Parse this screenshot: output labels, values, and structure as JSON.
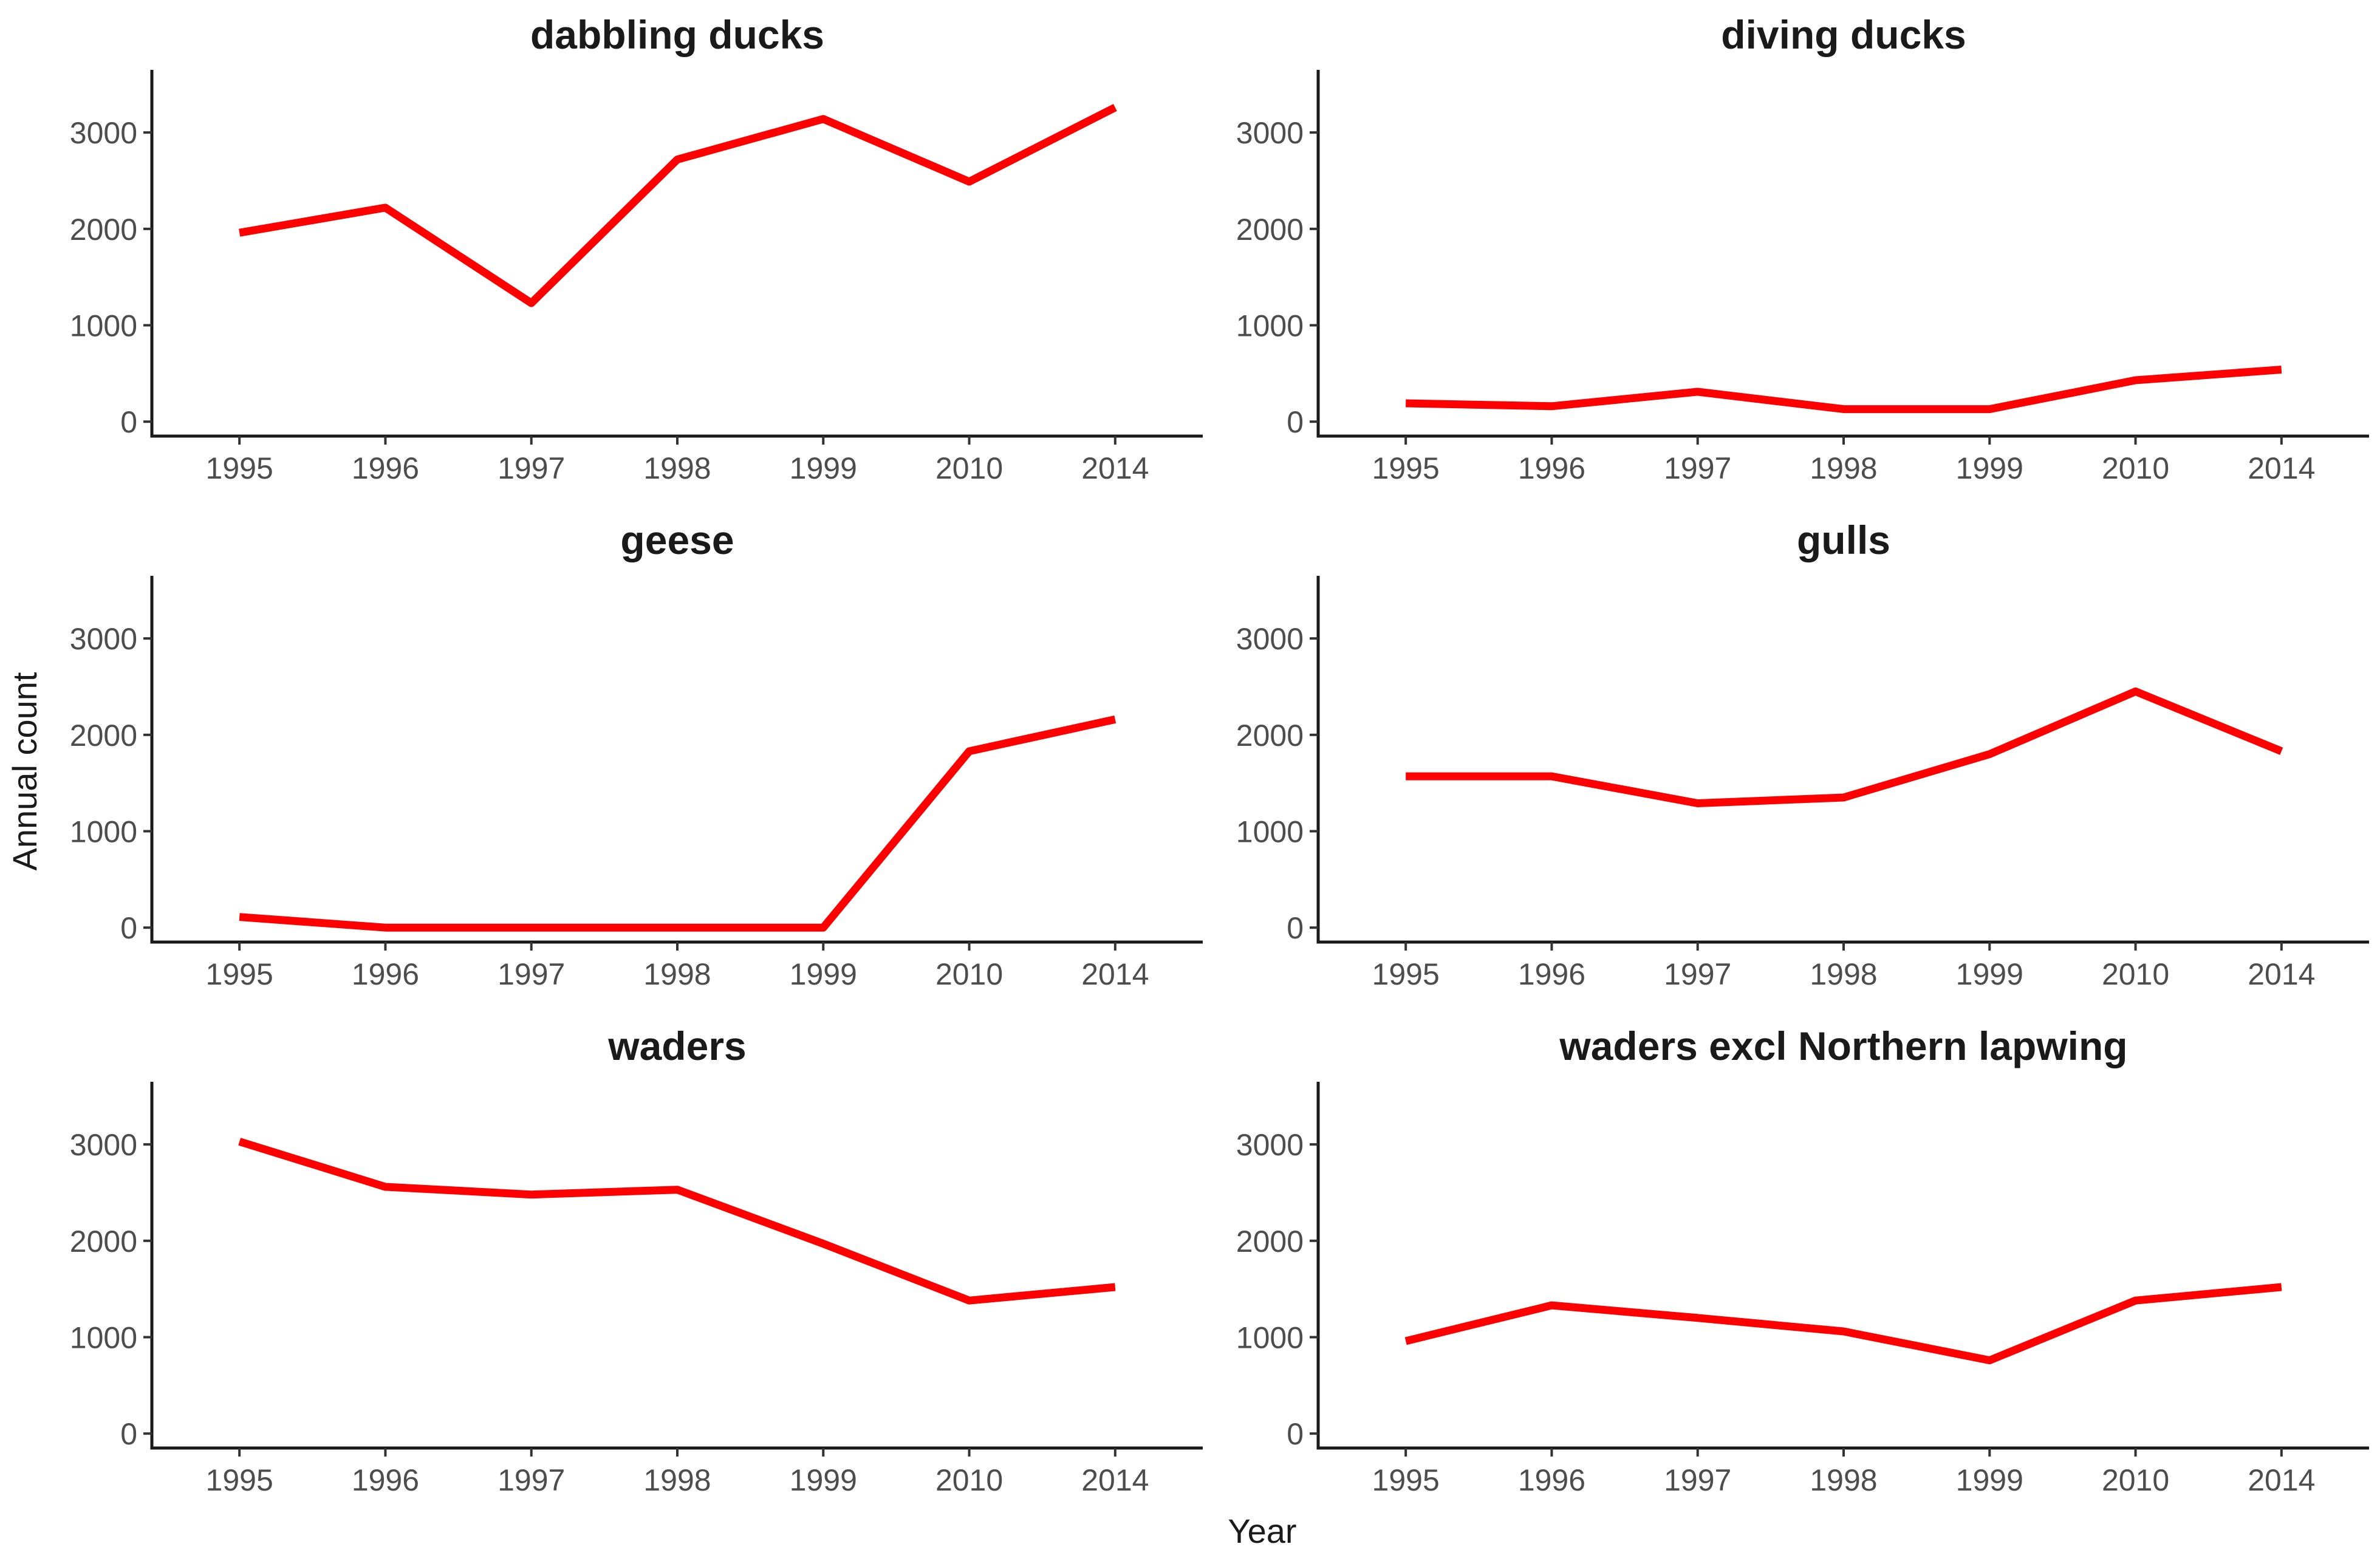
{
  "figure": {
    "xlabel": "Year",
    "ylabel": "Annual count",
    "line_color": "#ff0000"
  },
  "chart_data": [
    {
      "type": "line",
      "title": "dabbling ducks",
      "categories": [
        "1995",
        "1996",
        "1997",
        "1998",
        "1999",
        "2010",
        "2014"
      ],
      "values": [
        1960,
        2220,
        1230,
        2720,
        3140,
        2490,
        3260
      ],
      "yticks": [
        "0",
        "1000",
        "2000",
        "3000"
      ],
      "ylim": [
        -150,
        3650
      ]
    },
    {
      "type": "line",
      "title": "diving ducks",
      "categories": [
        "1995",
        "1996",
        "1997",
        "1998",
        "1999",
        "2010",
        "2014"
      ],
      "values": [
        190,
        160,
        310,
        130,
        130,
        430,
        540
      ],
      "yticks": [
        "0",
        "1000",
        "2000",
        "3000"
      ],
      "ylim": [
        -150,
        3650
      ]
    },
    {
      "type": "line",
      "title": "geese",
      "categories": [
        "1995",
        "1996",
        "1997",
        "1998",
        "1999",
        "2010",
        "2014"
      ],
      "values": [
        110,
        0,
        0,
        0,
        0,
        1830,
        2160
      ],
      "yticks": [
        "0",
        "1000",
        "2000",
        "3000"
      ],
      "ylim": [
        -150,
        3650
      ]
    },
    {
      "type": "line",
      "title": "gulls",
      "categories": [
        "1995",
        "1996",
        "1997",
        "1998",
        "1999",
        "2010",
        "2014"
      ],
      "values": [
        1570,
        1570,
        1290,
        1350,
        1800,
        2450,
        1830
      ],
      "yticks": [
        "0",
        "1000",
        "2000",
        "3000"
      ],
      "ylim": [
        -150,
        3650
      ]
    },
    {
      "type": "line",
      "title": "waders",
      "categories": [
        "1995",
        "1996",
        "1997",
        "1998",
        "1999",
        "2010",
        "2014"
      ],
      "values": [
        3030,
        2560,
        2480,
        2530,
        1970,
        1380,
        1520
      ],
      "yticks": [
        "0",
        "1000",
        "2000",
        "3000"
      ],
      "ylim": [
        -150,
        3650
      ]
    },
    {
      "type": "line",
      "title": "waders excl Northern lapwing",
      "categories": [
        "1995",
        "1996",
        "1997",
        "1998",
        "1999",
        "2010",
        "2014"
      ],
      "values": [
        960,
        1330,
        1200,
        1060,
        760,
        1380,
        1520
      ],
      "yticks": [
        "0",
        "1000",
        "2000",
        "3000"
      ],
      "ylim": [
        -150,
        3650
      ]
    }
  ]
}
